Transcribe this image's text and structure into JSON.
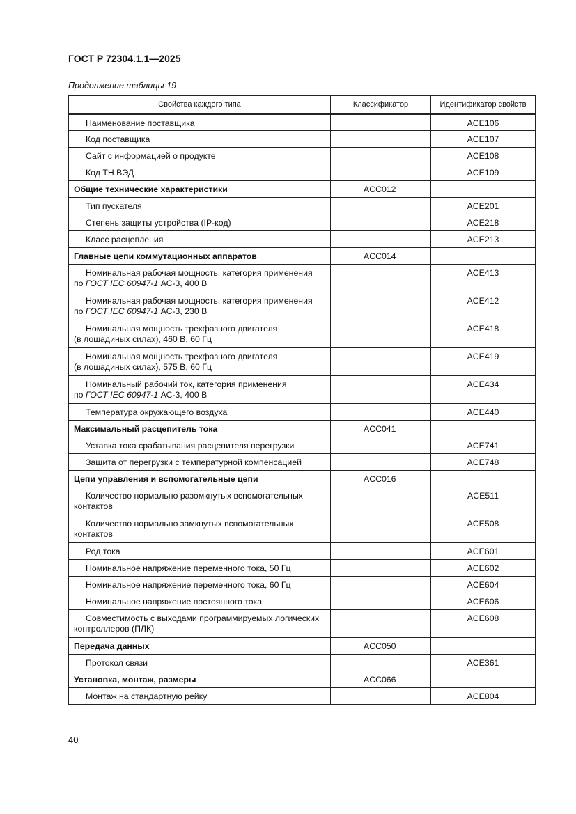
{
  "header": {
    "doc_id": "ГОСТ Р 72304.1.1—2025"
  },
  "caption": "Продолжение таблицы 19",
  "table": {
    "columns": [
      "Свойства каждого типа",
      "Классификатор",
      "Идентификатор свойств"
    ],
    "rows": [
      {
        "prop": [
          [
            "Наименование поставщика"
          ]
        ],
        "cls": "",
        "id": "ACE106"
      },
      {
        "prop": [
          [
            "Код поставщика"
          ]
        ],
        "cls": "",
        "id": "ACE107"
      },
      {
        "prop": [
          [
            "Сайт с информацией о продукте"
          ]
        ],
        "cls": "",
        "id": "ACE108"
      },
      {
        "prop": [
          [
            "Код ТН ВЭД"
          ]
        ],
        "cls": "",
        "id": "ACE109"
      },
      {
        "prop": [
          [
            "Общие технические характеристики"
          ]
        ],
        "cls": "ACC012",
        "id": "",
        "bold": true
      },
      {
        "prop": [
          [
            "Тип пускателя"
          ]
        ],
        "cls": "",
        "id": "ACE201"
      },
      {
        "prop": [
          [
            "Степень защиты устройства (IP-код)"
          ]
        ],
        "cls": "",
        "id": "ACE218"
      },
      {
        "prop": [
          [
            "Класс расцепления"
          ]
        ],
        "cls": "",
        "id": "ACE213"
      },
      {
        "prop": [
          [
            "Главные цепи коммутационных аппаратов"
          ]
        ],
        "cls": "ACC014",
        "id": "",
        "bold": true
      },
      {
        "prop": [
          [
            "Номинальная рабочая мощность, категория применения"
          ],
          [
            "по ",
            {
              "t": "ГОСТ IEC 60947-1",
              "i": true
            },
            " АС-3, 400 В"
          ]
        ],
        "cls": "",
        "id": "ACE413"
      },
      {
        "prop": [
          [
            "Номинальная рабочая мощность, категория применения"
          ],
          [
            "по ",
            {
              "t": "ГОСТ IEC 60947-1",
              "i": true
            },
            " АС-3, 230 В"
          ]
        ],
        "cls": "",
        "id": "ACE412"
      },
      {
        "prop": [
          [
            "Номинальная мощность трехфазного двигателя"
          ],
          [
            "(в лошадиных силах), 460 В, 60 Гц"
          ]
        ],
        "cls": "",
        "id": "ACE418"
      },
      {
        "prop": [
          [
            "Номинальная мощность трехфазного двигателя"
          ],
          [
            "(в лошадиных силах), 575 В, 60 Гц"
          ]
        ],
        "cls": "",
        "id": "ACE419"
      },
      {
        "prop": [
          [
            "Номинальный рабочий ток, категория применения"
          ],
          [
            "по ",
            {
              "t": "ГОСТ IEC 60947-1",
              "i": true
            },
            " АС-3, 400 В"
          ]
        ],
        "cls": "",
        "id": "ACE434"
      },
      {
        "prop": [
          [
            "Температура окружающего воздуха"
          ]
        ],
        "cls": "",
        "id": "ACE440"
      },
      {
        "prop": [
          [
            "Максимальный расцепитель тока"
          ]
        ],
        "cls": "ACC041",
        "id": "",
        "bold": true
      },
      {
        "prop": [
          [
            "Уставка тока срабатывания расцепителя перегрузки"
          ]
        ],
        "cls": "",
        "id": "ACE741"
      },
      {
        "prop": [
          [
            "Защита от перегрузки с температурной компенсацией"
          ]
        ],
        "cls": "",
        "id": "ACE748"
      },
      {
        "prop": [
          [
            "Цепи управления и вспомогательные цепи"
          ]
        ],
        "cls": "ACC016",
        "id": "",
        "bold": true
      },
      {
        "prop": [
          [
            "Количество нормально разомкнутых вспомогательных"
          ],
          [
            "контактов"
          ]
        ],
        "cls": "",
        "id": "ACE511"
      },
      {
        "prop": [
          [
            "Количество нормально замкнутых вспомогательных"
          ],
          [
            "контактов"
          ]
        ],
        "cls": "",
        "id": "ACE508"
      },
      {
        "prop": [
          [
            "Род тока"
          ]
        ],
        "cls": "",
        "id": "ACE601"
      },
      {
        "prop": [
          [
            "Номинальное напряжение переменного тока, 50 Гц"
          ]
        ],
        "cls": "",
        "id": "ACE602"
      },
      {
        "prop": [
          [
            "Номинальное напряжение переменного тока, 60 Гц"
          ]
        ],
        "cls": "",
        "id": "ACE604"
      },
      {
        "prop": [
          [
            "Номинальное напряжение постоянного тока"
          ]
        ],
        "cls": "",
        "id": "ACE606"
      },
      {
        "prop": [
          [
            "Совместимость с выходами программируемых логических"
          ],
          [
            "контроллеров (ПЛК)"
          ]
        ],
        "cls": "",
        "id": "ACE608"
      },
      {
        "prop": [
          [
            "Передача данных"
          ]
        ],
        "cls": "ACC050",
        "id": "",
        "bold": true
      },
      {
        "prop": [
          [
            "Протокол связи"
          ]
        ],
        "cls": "",
        "id": "ACE361"
      },
      {
        "prop": [
          [
            "Установка, монтаж, размеры"
          ]
        ],
        "cls": "ACC066",
        "id": "",
        "bold": true
      },
      {
        "prop": [
          [
            "Монтаж на стандартную рейку"
          ]
        ],
        "cls": "",
        "id": "ACE804"
      }
    ]
  },
  "footer": {
    "page_number": "40"
  }
}
